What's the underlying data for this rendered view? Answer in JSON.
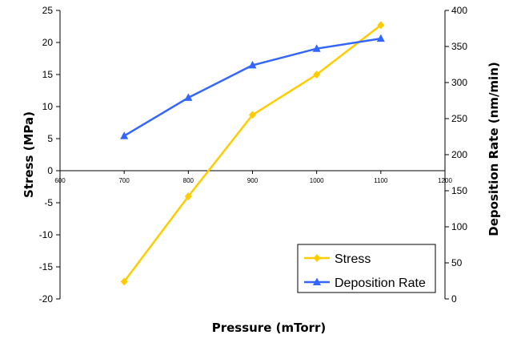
{
  "chart_data": {
    "type": "line",
    "xlabel": "Pressure (mTorr)",
    "ylabel": "Stress (MPa)",
    "y2label": "Deposition Rate (nm/min)",
    "xlim": [
      600,
      1200
    ],
    "xticks": [
      600,
      700,
      800,
      900,
      1000,
      1100,
      1200
    ],
    "ylim": [
      -20,
      25
    ],
    "yticks": [
      -20,
      -15,
      -10,
      -5,
      0,
      5,
      10,
      15,
      20,
      25
    ],
    "y2lim": [
      0,
      400
    ],
    "y2ticks": [
      0,
      50,
      100,
      150,
      200,
      250,
      300,
      350,
      400
    ],
    "grid": false,
    "legend_position": "bottom-right",
    "x": [
      700,
      800,
      900,
      1000,
      1100
    ],
    "series": [
      {
        "name": "Stress",
        "axis": "left",
        "color": "#FFCC00",
        "marker": "diamond",
        "values": [
          -17.3,
          -4.0,
          8.7,
          15.0,
          22.7
        ]
      },
      {
        "name": "Deposition Rate",
        "axis": "right",
        "color": "#3366FF",
        "marker": "triangle",
        "values": [
          226,
          279,
          324,
          347,
          361
        ]
      }
    ]
  }
}
